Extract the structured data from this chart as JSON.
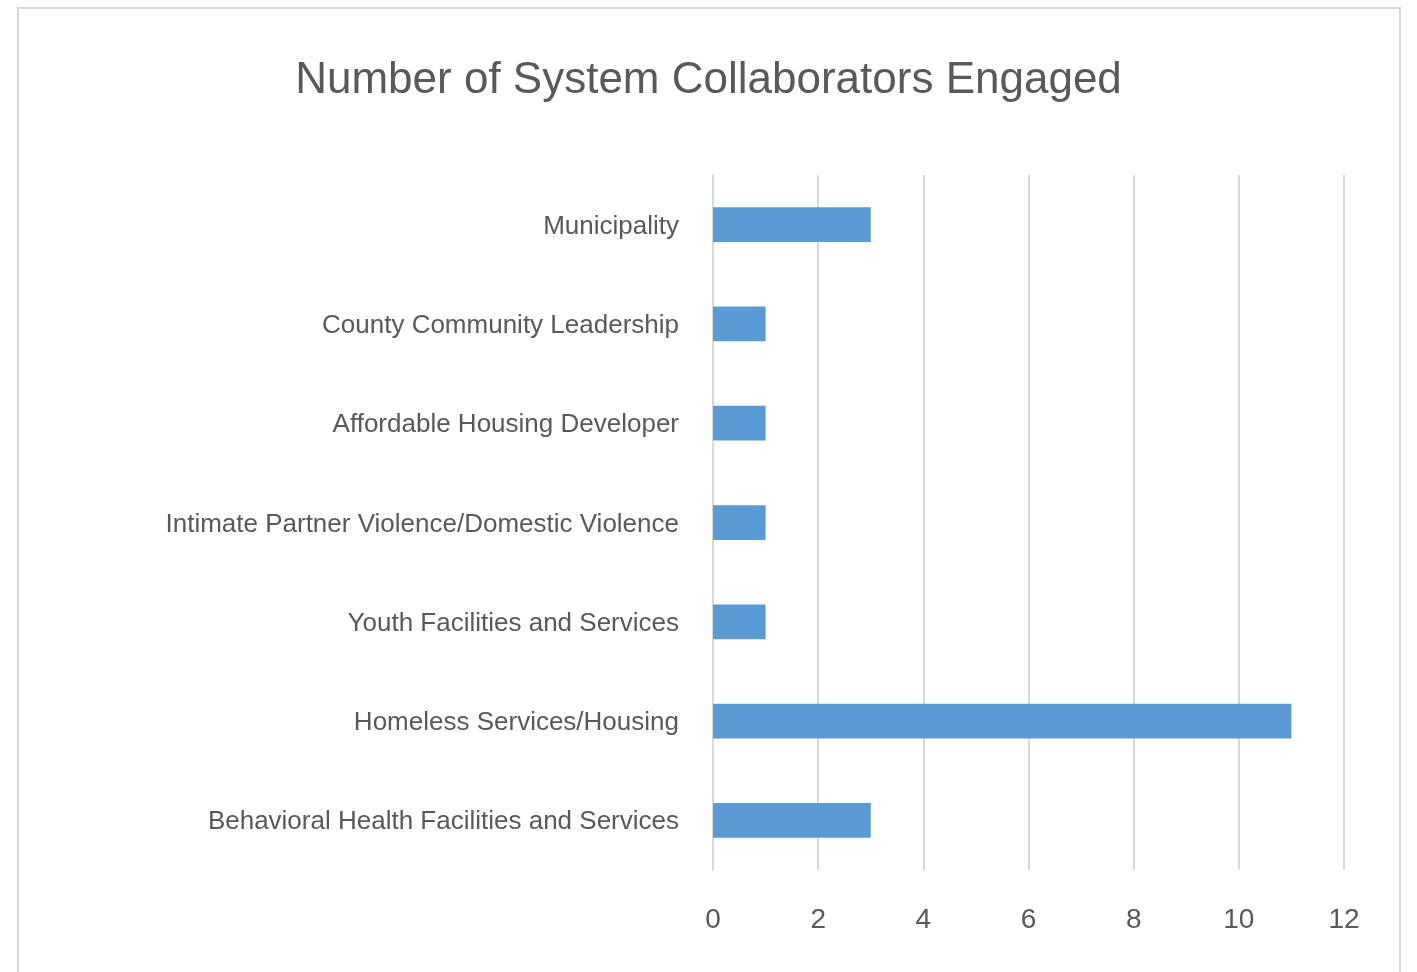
{
  "chart_data": {
    "type": "bar",
    "orientation": "horizontal",
    "title": "Number of System Collaborators Engaged",
    "categories": [
      "Municipality",
      "County Community Leadership",
      "Affordable Housing Developer",
      "Intimate Partner Violence/Domestic Violence",
      "Youth Facilities and Services",
      "Homeless Services/Housing",
      "Behavioral Health Facilities and Services"
    ],
    "values": [
      3,
      1,
      1,
      1,
      1,
      11,
      3
    ],
    "color": "#5b9bd5",
    "xlim": [
      0,
      12
    ],
    "xticks": [
      0,
      2,
      4,
      6,
      8,
      10,
      12
    ],
    "grid": "x"
  }
}
